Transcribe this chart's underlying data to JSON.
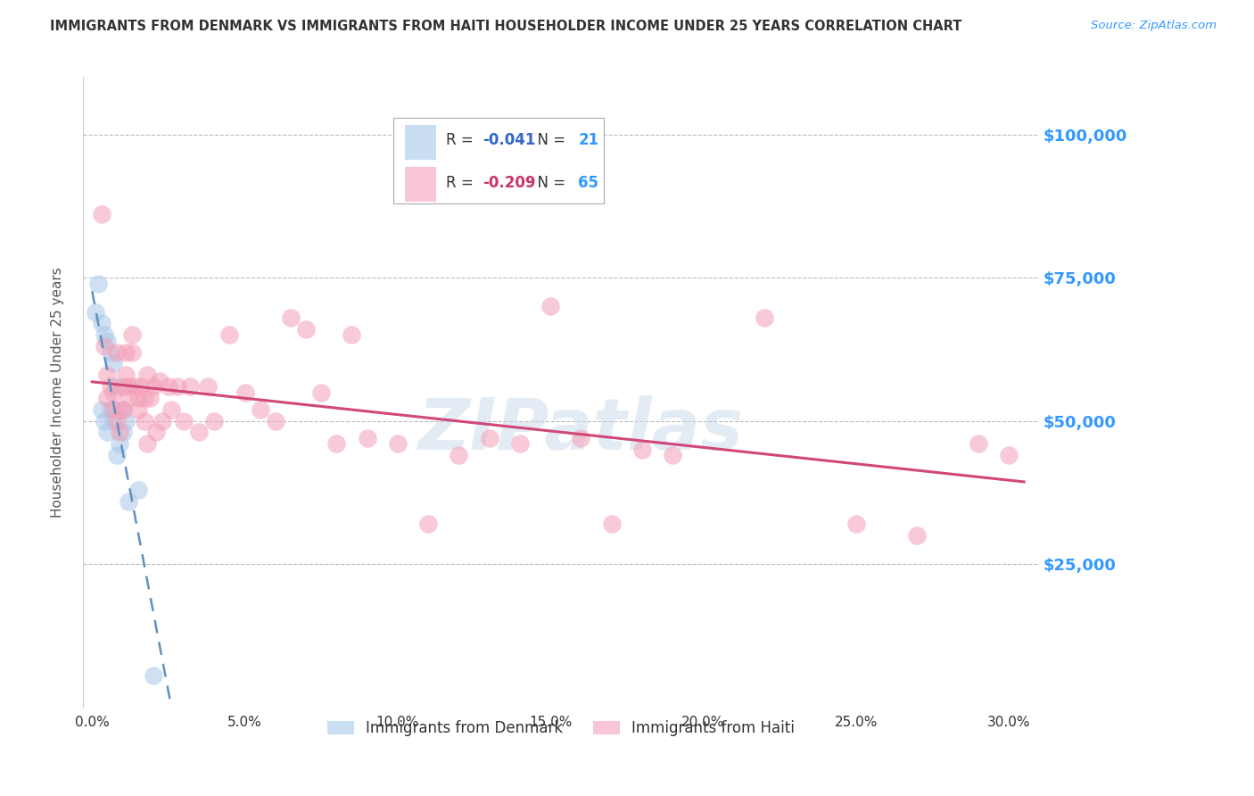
{
  "title": "IMMIGRANTS FROM DENMARK VS IMMIGRANTS FROM HAITI HOUSEHOLDER INCOME UNDER 25 YEARS CORRELATION CHART",
  "source": "Source: ZipAtlas.com",
  "ylabel": "Householder Income Under 25 years",
  "xlabel_ticks": [
    "0.0%",
    "5.0%",
    "10.0%",
    "15.0%",
    "20.0%",
    "25.0%",
    "30.0%"
  ],
  "xlabel_vals": [
    0.0,
    0.05,
    0.1,
    0.15,
    0.2,
    0.25,
    0.3
  ],
  "ytick_labels": [
    "$25,000",
    "$50,000",
    "$75,000",
    "$100,000"
  ],
  "ytick_vals": [
    25000,
    50000,
    75000,
    100000
  ],
  "ylim": [
    0,
    110000
  ],
  "xlim": [
    -0.003,
    0.31
  ],
  "denmark_R": "-0.041",
  "denmark_N": "21",
  "haiti_R": "-0.209",
  "haiti_N": "65",
  "denmark_color": "#a8c8e8",
  "haiti_color": "#f4a0b8",
  "denmark_line_color": "#6090c0",
  "haiti_line_color": "#d04878",
  "watermark": "ZIPatlas",
  "denmark_points_x": [
    0.001,
    0.002,
    0.003,
    0.003,
    0.004,
    0.004,
    0.005,
    0.005,
    0.006,
    0.006,
    0.007,
    0.007,
    0.008,
    0.008,
    0.009,
    0.01,
    0.01,
    0.011,
    0.012,
    0.015,
    0.02
  ],
  "denmark_points_y": [
    69000,
    74000,
    67000,
    52000,
    65000,
    50000,
    64000,
    48000,
    62000,
    52000,
    60000,
    50000,
    56000,
    44000,
    46000,
    48000,
    52000,
    50000,
    36000,
    38000,
    5500
  ],
  "haiti_points_x": [
    0.003,
    0.004,
    0.005,
    0.005,
    0.006,
    0.007,
    0.007,
    0.008,
    0.008,
    0.009,
    0.009,
    0.01,
    0.01,
    0.011,
    0.011,
    0.012,
    0.012,
    0.013,
    0.013,
    0.014,
    0.015,
    0.015,
    0.016,
    0.017,
    0.017,
    0.018,
    0.018,
    0.019,
    0.02,
    0.021,
    0.022,
    0.023,
    0.025,
    0.026,
    0.028,
    0.03,
    0.032,
    0.035,
    0.038,
    0.04,
    0.045,
    0.05,
    0.055,
    0.06,
    0.065,
    0.07,
    0.075,
    0.08,
    0.085,
    0.09,
    0.1,
    0.11,
    0.12,
    0.13,
    0.14,
    0.15,
    0.16,
    0.17,
    0.18,
    0.19,
    0.22,
    0.25,
    0.27,
    0.29,
    0.3
  ],
  "haiti_points_y": [
    86000,
    63000,
    58000,
    54000,
    56000,
    55000,
    52000,
    62000,
    50000,
    52000,
    48000,
    56000,
    52000,
    62000,
    58000,
    56000,
    54000,
    65000,
    62000,
    56000,
    54000,
    52000,
    56000,
    54000,
    50000,
    58000,
    46000,
    54000,
    56000,
    48000,
    57000,
    50000,
    56000,
    52000,
    56000,
    50000,
    56000,
    48000,
    56000,
    50000,
    65000,
    55000,
    52000,
    50000,
    68000,
    66000,
    55000,
    46000,
    65000,
    47000,
    46000,
    32000,
    44000,
    47000,
    46000,
    70000,
    47000,
    32000,
    45000,
    44000,
    68000,
    32000,
    30000,
    46000,
    44000
  ],
  "background_color": "#ffffff",
  "grid_color": "#bbbbbb",
  "title_color": "#333333",
  "right_label_color": "#3399ff",
  "legend_R_denmark_color": "#3366cc",
  "legend_R_haiti_color": "#cc3366",
  "legend_N_color": "#3399ff"
}
